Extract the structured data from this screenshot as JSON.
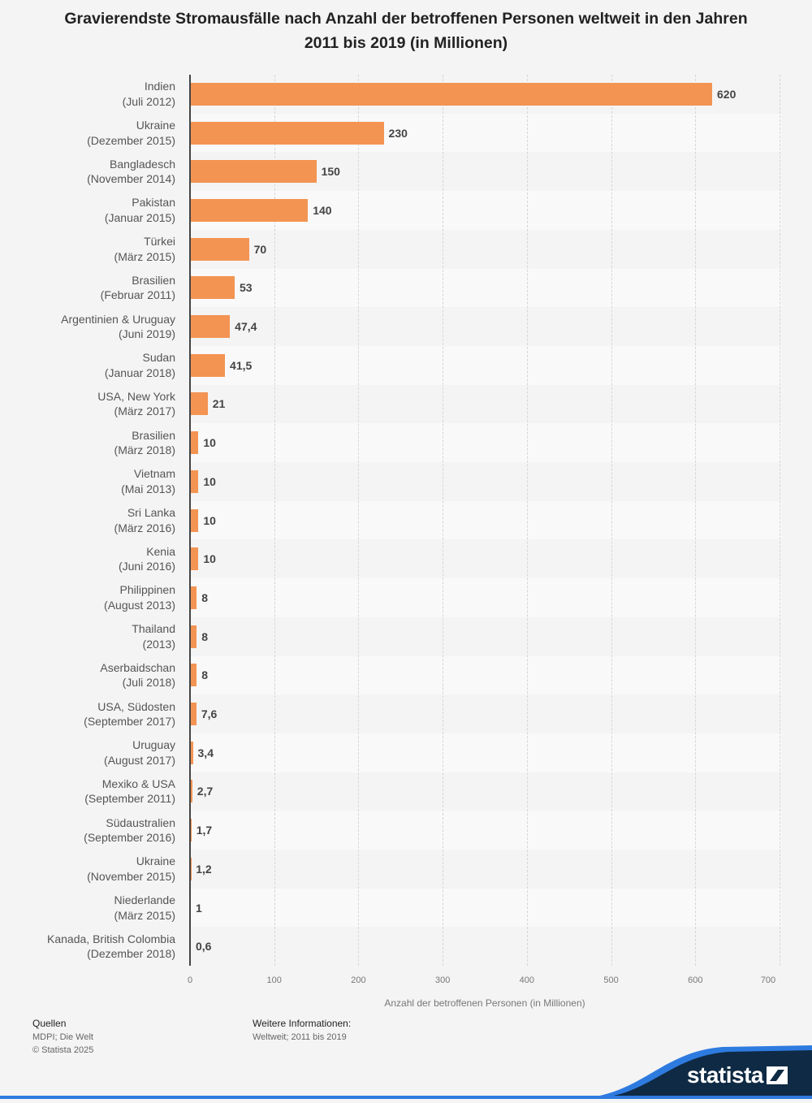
{
  "header": {
    "title": "Gravierendste Stromausfälle nach Anzahl der betroffenen Personen weltweit in den Jahren 2011 bis 2019 (in Millionen)"
  },
  "chart_data": {
    "type": "bar",
    "orientation": "horizontal",
    "title": "Gravierendste Stromausfälle nach Anzahl der betroffenen Personen weltweit in den Jahren 2011 bis 2019 (in Millionen)",
    "xlabel": "Anzahl der betroffenen Personen (in Millionen)",
    "ylabel": "",
    "xlim": [
      0,
      700
    ],
    "xticks": [
      "0",
      "100",
      "200",
      "300",
      "400",
      "500",
      "600",
      "700"
    ],
    "grid": true,
    "bar_color": "#f39453",
    "categories": [
      {
        "name": "Indien",
        "date": "(Juli 2012)"
      },
      {
        "name": "Ukraine",
        "date": "(Dezember 2015)"
      },
      {
        "name": "Bangladesch",
        "date": "(November 2014)"
      },
      {
        "name": "Pakistan",
        "date": "(Januar 2015)"
      },
      {
        "name": "Türkei",
        "date": "(März 2015)"
      },
      {
        "name": "Brasilien",
        "date": "(Februar 2011)"
      },
      {
        "name": "Argentinien & Uruguay",
        "date": "(Juni 2019)"
      },
      {
        "name": "Sudan",
        "date": "(Januar 2018)"
      },
      {
        "name": "USA, New York",
        "date": "(März 2017)"
      },
      {
        "name": "Brasilien",
        "date": "(März 2018)"
      },
      {
        "name": "Vietnam",
        "date": "(Mai 2013)"
      },
      {
        "name": "Sri Lanka",
        "date": "(März 2016)"
      },
      {
        "name": "Kenia",
        "date": "(Juni 2016)"
      },
      {
        "name": "Philippinen",
        "date": "(August 2013)"
      },
      {
        "name": "Thailand",
        "date": "(2013)"
      },
      {
        "name": "Aserbaidschan",
        "date": "(Juli 2018)"
      },
      {
        "name": "USA, Südosten",
        "date": "(September 2017)"
      },
      {
        "name": "Uruguay",
        "date": "(August 2017)"
      },
      {
        "name": "Mexiko & USA",
        "date": "(September 2011)"
      },
      {
        "name": "Südaustralien",
        "date": "(September 2016)"
      },
      {
        "name": "Ukraine",
        "date": "(November 2015)"
      },
      {
        "name": "Niederlande",
        "date": "(März 2015)"
      },
      {
        "name": "Kanada, British Colombia",
        "date": "(Dezember 2018)"
      }
    ],
    "values": [
      620,
      230,
      150,
      140,
      70,
      53,
      47.4,
      41.5,
      21,
      10,
      10,
      10,
      10,
      8,
      8,
      8,
      7.6,
      3.4,
      2.7,
      1.7,
      1.2,
      1,
      0.6
    ],
    "value_labels": [
      "620",
      "230",
      "150",
      "140",
      "70",
      "53",
      "47,4",
      "41,5",
      "21",
      "10",
      "10",
      "10",
      "10",
      "8",
      "8",
      "8",
      "7,6",
      "3,4",
      "2,7",
      "1,7",
      "1,2",
      "1",
      "0,6"
    ]
  },
  "footer": {
    "sources_title": "Quellen",
    "sources_text": "MDPI; Die Welt",
    "copyright": "© Statista 2025",
    "info_title": "Weitere Informationen:",
    "info_text": "Weltweit; 2011 bis 2019",
    "brand": "statista"
  }
}
